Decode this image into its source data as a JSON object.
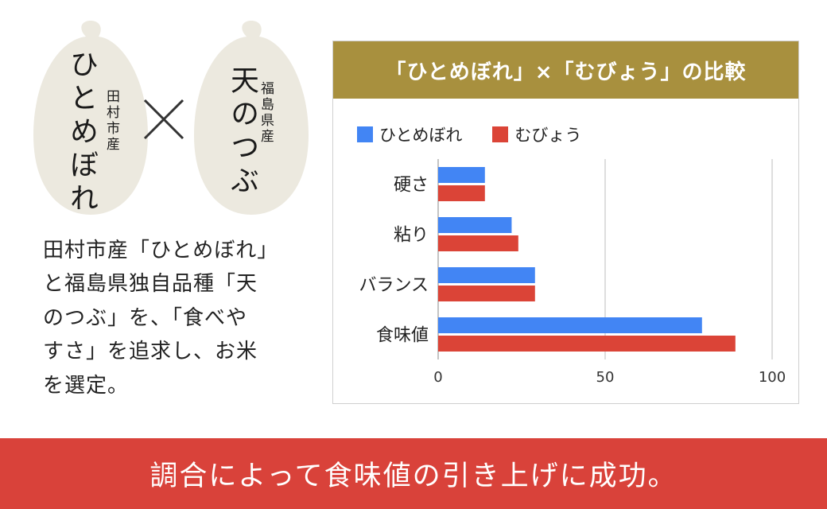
{
  "grain_left": {
    "name": "ひとめぼれ",
    "origin": "田村市産"
  },
  "grain_right": {
    "name": "天のつぶ",
    "origin": "福島県産"
  },
  "description_lines": [
    "田村市産「ひとめぼれ」",
    "と福島県独自品種「天",
    "のつぶ」を、「食べや",
    "すさ」を追求し、お米",
    "を選定。"
  ],
  "colors": {
    "header_bg": "#a8903e",
    "series_blue": "#4285f4",
    "series_red": "#db4437",
    "banner_bg": "#d9423a",
    "grain": "#ece9df"
  },
  "chart_data": {
    "type": "bar",
    "orientation": "horizontal",
    "title": "「ひとめぼれ」×「むびょう」の比較",
    "categories": [
      "硬さ",
      "粘り",
      "バランス",
      "食味値"
    ],
    "series": [
      {
        "name": "ひとめぼれ",
        "values": [
          14,
          22,
          29,
          79
        ]
      },
      {
        "name": "むびょう",
        "values": [
          14,
          24,
          29,
          89
        ]
      }
    ],
    "xlim": [
      0,
      100
    ],
    "xticks": [
      "0",
      "50",
      "100"
    ],
    "grid": true,
    "legend": "top-left"
  },
  "banner": {
    "text": "調合によって食味値の引き上げに成功。"
  }
}
